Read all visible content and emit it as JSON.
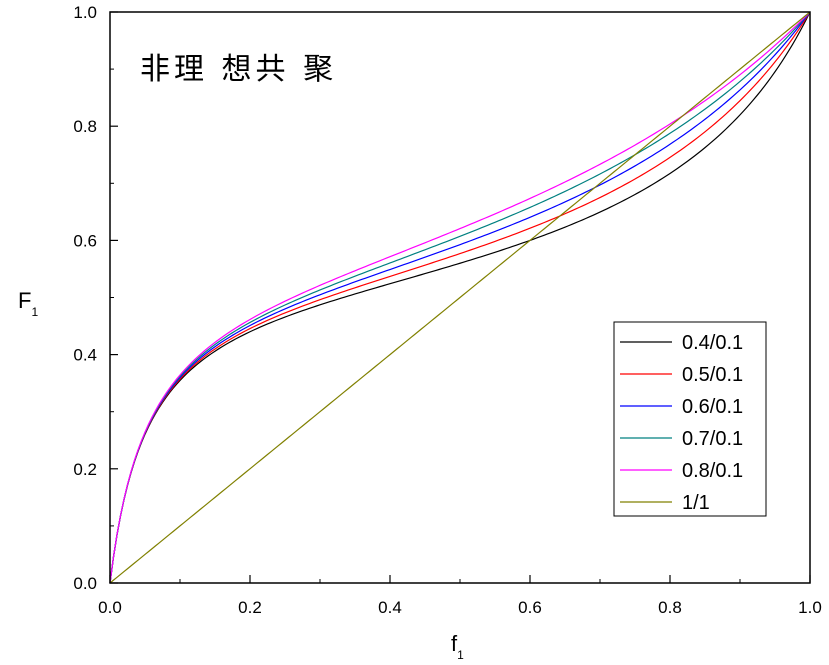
{
  "chart_data": {
    "type": "line",
    "title": "",
    "annotation": "非理 想共 聚",
    "xlabel": {
      "main": "f",
      "sub": "1"
    },
    "ylabel": {
      "main": "F",
      "sub": "1"
    },
    "xlim": [
      0.0,
      1.0
    ],
    "ylim": [
      0.0,
      1.0
    ],
    "xticks": [
      "0.0",
      "0.2",
      "0.4",
      "0.6",
      "0.8",
      "1.0"
    ],
    "yticks": [
      "0.0",
      "0.2",
      "0.4",
      "0.6",
      "0.8",
      "1.0"
    ],
    "grid": false,
    "legend_position": "lower-right",
    "x": [
      0.0,
      0.01,
      0.03,
      0.05,
      0.08,
      0.1,
      0.13,
      0.16,
      0.2,
      0.25,
      0.3,
      0.35,
      0.4,
      0.45,
      0.5,
      0.55,
      0.6,
      0.65,
      0.7,
      0.75,
      0.8,
      0.85,
      0.9,
      0.95,
      1.0
    ],
    "series": [
      {
        "name": "0.4/0.1",
        "color": "#000000",
        "r1": 0.4,
        "r2": 0.1,
        "values": [
          0.0,
          0.058,
          0.141,
          0.2,
          0.264,
          0.299,
          0.343,
          0.38,
          0.42,
          0.46,
          0.493,
          0.521,
          0.545,
          0.565,
          0.582,
          0.599,
          0.615,
          0.632,
          0.65,
          0.671,
          0.7,
          0.738,
          0.797,
          0.883,
          1.0
        ]
      },
      {
        "name": "0.5/0.1",
        "color": "#ff0000",
        "r1": 0.5,
        "r2": 0.1,
        "values": [
          0.0,
          0.059,
          0.142,
          0.203,
          0.269,
          0.305,
          0.352,
          0.39,
          0.432,
          0.475,
          0.509,
          0.537,
          0.562,
          0.585,
          0.606,
          0.626,
          0.646,
          0.667,
          0.689,
          0.714,
          0.744,
          0.781,
          0.829,
          0.898,
          1.0
        ]
      },
      {
        "name": "0.6/0.1",
        "color": "#0000ff",
        "r1": 0.6,
        "r2": 0.1,
        "values": [
          0.0,
          0.059,
          0.144,
          0.205,
          0.273,
          0.311,
          0.359,
          0.398,
          0.443,
          0.487,
          0.522,
          0.552,
          0.578,
          0.602,
          0.625,
          0.648,
          0.67,
          0.693,
          0.718,
          0.744,
          0.774,
          0.809,
          0.852,
          0.911,
          1.0
        ]
      },
      {
        "name": "0.7/0.1",
        "color": "#008080",
        "r1": 0.7,
        "r2": 0.1,
        "values": [
          0.0,
          0.06,
          0.145,
          0.207,
          0.277,
          0.316,
          0.366,
          0.406,
          0.452,
          0.498,
          0.534,
          0.565,
          0.592,
          0.618,
          0.643,
          0.667,
          0.691,
          0.716,
          0.741,
          0.768,
          0.798,
          0.831,
          0.871,
          0.922,
          1.0
        ]
      },
      {
        "name": "0.8/0.1",
        "color": "#ff00ff",
        "r1": 0.8,
        "r2": 0.1,
        "values": [
          0.0,
          0.06,
          0.146,
          0.209,
          0.28,
          0.32,
          0.372,
          0.413,
          0.46,
          0.507,
          0.545,
          0.577,
          0.605,
          0.632,
          0.658,
          0.683,
          0.708,
          0.734,
          0.76,
          0.788,
          0.817,
          0.849,
          0.886,
          0.932,
          1.0
        ]
      },
      {
        "name": "1/1",
        "color": "#808000",
        "r1": 1,
        "r2": 1,
        "values": [
          0.0,
          0.01,
          0.03,
          0.05,
          0.08,
          0.1,
          0.13,
          0.16,
          0.2,
          0.25,
          0.3,
          0.35,
          0.4,
          0.45,
          0.5,
          0.55,
          0.6,
          0.65,
          0.7,
          0.75,
          0.8,
          0.85,
          0.9,
          0.95,
          1.0
        ]
      }
    ]
  }
}
